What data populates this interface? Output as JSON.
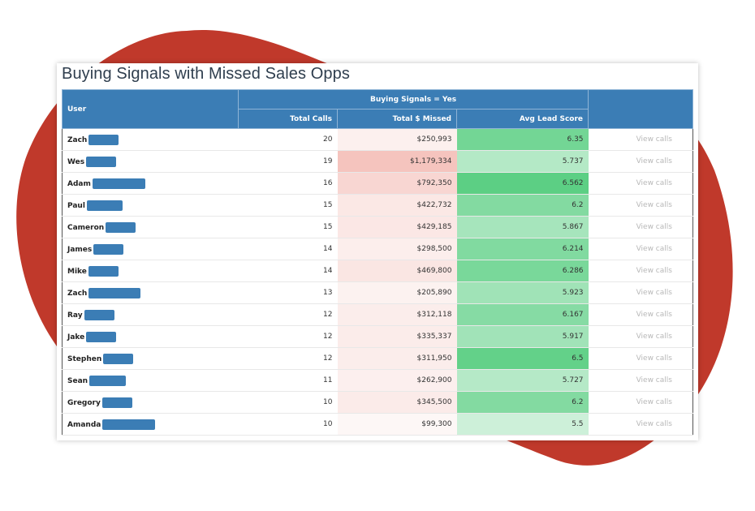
{
  "title": "Buying Signals with Missed Sales Opps",
  "colors": {
    "header": "#3b7db5",
    "blob": "#c0392b",
    "missed_max": "#f5c4be",
    "missed_min": "#fdf7f6",
    "score_max": "#5ccf84",
    "score_min": "#cdf0d9"
  },
  "table": {
    "headers": {
      "user": "User",
      "group": "Buying Signals = Yes",
      "total_calls": "Total Calls",
      "total_missed": "Total $ Missed",
      "avg_lead_score": "Avg Lead Score"
    },
    "rows": [
      {
        "user": "Zach",
        "total_calls": "20",
        "total_missed": "$250,993",
        "avg_lead_score": "6.35",
        "action": "View calls"
      },
      {
        "user": "Wes",
        "total_calls": "19",
        "total_missed": "$1,179,334",
        "avg_lead_score": "5.737",
        "action": "View calls"
      },
      {
        "user": "Adam",
        "total_calls": "16",
        "total_missed": "$792,350",
        "avg_lead_score": "6.562",
        "action": "View calls"
      },
      {
        "user": "Paul",
        "total_calls": "15",
        "total_missed": "$422,732",
        "avg_lead_score": "6.2",
        "action": "View calls"
      },
      {
        "user": "Cameron",
        "total_calls": "15",
        "total_missed": "$429,185",
        "avg_lead_score": "5.867",
        "action": "View calls"
      },
      {
        "user": "James",
        "total_calls": "14",
        "total_missed": "$298,500",
        "avg_lead_score": "6.214",
        "action": "View calls"
      },
      {
        "user": "Mike",
        "total_calls": "14",
        "total_missed": "$469,800",
        "avg_lead_score": "6.286",
        "action": "View calls"
      },
      {
        "user": "Zach",
        "total_calls": "13",
        "total_missed": "$205,890",
        "avg_lead_score": "5.923",
        "action": "View calls"
      },
      {
        "user": "Ray",
        "total_calls": "12",
        "total_missed": "$312,118",
        "avg_lead_score": "6.167",
        "action": "View calls"
      },
      {
        "user": "Jake",
        "total_calls": "12",
        "total_missed": "$335,337",
        "avg_lead_score": "5.917",
        "action": "View calls"
      },
      {
        "user": "Stephen",
        "total_calls": "12",
        "total_missed": "$311,950",
        "avg_lead_score": "6.5",
        "action": "View calls"
      },
      {
        "user": "Sean",
        "total_calls": "11",
        "total_missed": "$262,900",
        "avg_lead_score": "5.727",
        "action": "View calls"
      },
      {
        "user": "Gregory",
        "total_calls": "10",
        "total_missed": "$345,500",
        "avg_lead_score": "6.2",
        "action": "View calls"
      },
      {
        "user": "Amanda",
        "total_calls": "10",
        "total_missed": "$99,300",
        "avg_lead_score": "5.5",
        "action": "View calls"
      }
    ]
  }
}
